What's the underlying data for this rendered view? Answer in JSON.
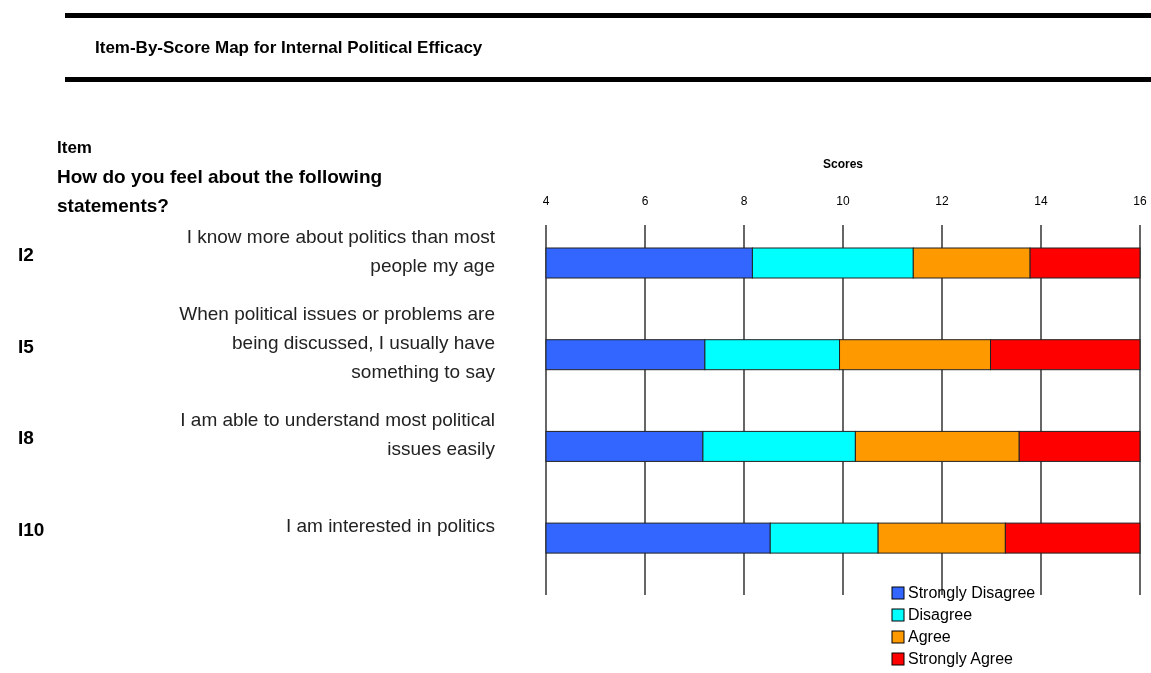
{
  "chart_data": {
    "type": "bar",
    "orientation": "horizontal",
    "title": "Item-By-Score Map for Internal Political Efficacy",
    "xlabel": "Scores",
    "annotations": [
      "Item",
      "How do you feel about the following statements?",
      "I2",
      "I5",
      "I8",
      "I10"
    ],
    "categories": [
      "I know more about politics than most people my age",
      "When political issues or problems are being discussed, I usually have something to say",
      "I am able to understand most political issues easily",
      "I am interested in politics"
    ],
    "series": [
      {
        "name": "Strongly Disagree",
        "color": "#3366ff",
        "base": [
          4,
          4,
          4,
          4
        ],
        "values": [
          4.17,
          3.21,
          3.17,
          4.53
        ]
      },
      {
        "name": "Disagree",
        "color": "#00ffff",
        "base": [
          8.17,
          7.21,
          7.17,
          8.53
        ],
        "values": [
          3.25,
          2.72,
          3.08,
          2.18
        ]
      },
      {
        "name": "Agree",
        "color": "#ff9900",
        "base": [
          11.42,
          9.93,
          10.25,
          10.71
        ],
        "values": [
          2.36,
          3.05,
          3.31,
          2.57
        ]
      },
      {
        "name": "Strongly Agree",
        "color": "#ff0000",
        "base": [
          13.78,
          12.98,
          13.56,
          13.28
        ],
        "values": [
          2.22,
          3.02,
          2.44,
          2.72
        ]
      }
    ],
    "xlim": [
      4,
      16
    ],
    "xticks": [
      4,
      6,
      8,
      10,
      12,
      14,
      16
    ],
    "grid": "x",
    "legend": "bottom right"
  }
}
